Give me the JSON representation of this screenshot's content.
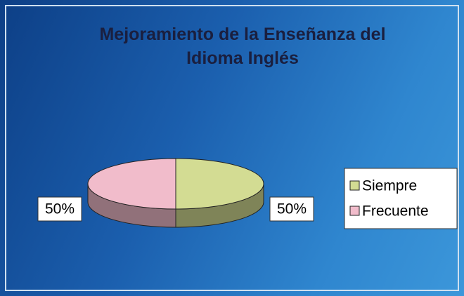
{
  "chart_data": {
    "type": "pie",
    "title": "Mejoramiento de la Enseñanza del Idioma Inglés",
    "categories": [
      "Siempre",
      "Frecuente"
    ],
    "values": [
      50,
      50
    ],
    "value_labels": [
      "50%",
      "50%"
    ],
    "colors": [
      "#d3dc93",
      "#f1bccb"
    ],
    "legend": "right"
  }
}
